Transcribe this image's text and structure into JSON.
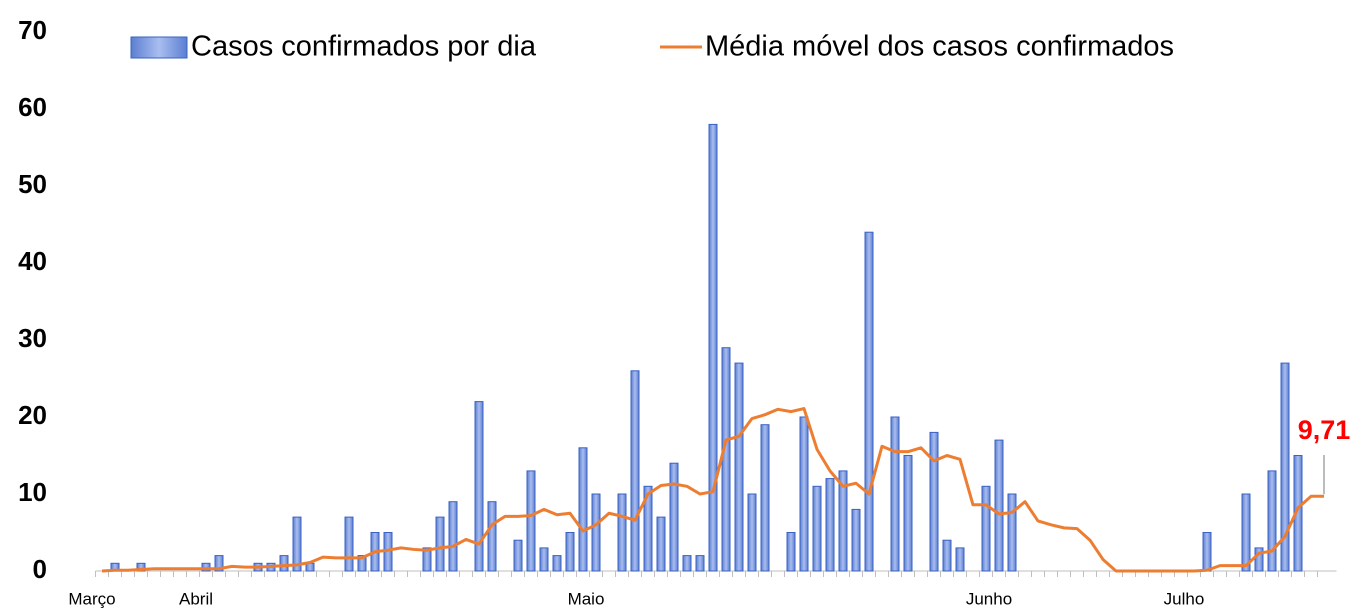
{
  "chart_data": {
    "type": "bar_line",
    "categories": [
      "Março",
      null,
      null,
      null,
      null,
      null,
      null,
      null,
      "Abril",
      null,
      null,
      null,
      null,
      null,
      null,
      null,
      null,
      null,
      null,
      null,
      null,
      null,
      null,
      null,
      null,
      null,
      null,
      null,
      null,
      null,
      null,
      null,
      null,
      null,
      null,
      null,
      null,
      null,
      "Maio",
      null,
      null,
      null,
      null,
      null,
      null,
      null,
      null,
      null,
      null,
      null,
      null,
      null,
      null,
      null,
      null,
      null,
      null,
      null,
      null,
      null,
      null,
      null,
      null,
      null,
      null,
      null,
      null,
      null,
      null,
      "Junho",
      null,
      null,
      null,
      null,
      null,
      null,
      null,
      null,
      null,
      null,
      null,
      null,
      null,
      null,
      "Julho",
      null,
      null,
      null,
      null,
      null,
      null,
      null,
      null,
      null,
      null
    ],
    "series": [
      {
        "name": "Casos confirmados por dia",
        "color": "#7291d8",
        "values": [
          0,
          1,
          0,
          1,
          0,
          0,
          0,
          0,
          1,
          2,
          0,
          0,
          1,
          1,
          2,
          7,
          1,
          0,
          0,
          7,
          2,
          5,
          5,
          0,
          0,
          3,
          7,
          9,
          0,
          22,
          9,
          0,
          4,
          13,
          3,
          2,
          5,
          16,
          10,
          0,
          10,
          26,
          11,
          7,
          14,
          2,
          2,
          58,
          29,
          27,
          10,
          19,
          0,
          5,
          20,
          11,
          12,
          13,
          8,
          44,
          0,
          20,
          15,
          0,
          18,
          4,
          3,
          0,
          11,
          17,
          10,
          0,
          0,
          0,
          0,
          0,
          0,
          0,
          0,
          0,
          0,
          0,
          0,
          0,
          0,
          5,
          0,
          0,
          10,
          3,
          13,
          27,
          15,
          0,
          0
        ]
      },
      {
        "name": "Média móvel dos casos confirmados",
        "color": "#ed7d31",
        "values": [
          0,
          0.1,
          0.1,
          0.2,
          0.3,
          0.3,
          0.3,
          0.3,
          0.3,
          0.3,
          0.6,
          0.5,
          0.5,
          0.6,
          0.7,
          0.8,
          1.1,
          1.8,
          1.7,
          1.7,
          1.7,
          2.5,
          2.7,
          3,
          2.8,
          2.7,
          3,
          3.2,
          4.1,
          3.5,
          6,
          7.1,
          7.1,
          7.2,
          8,
          7.3,
          7.5,
          5.2,
          6,
          7.5,
          7.1,
          6.6,
          10,
          11.1,
          11.3,
          11,
          10,
          10.3,
          17,
          17.5,
          19.8,
          20.3,
          21,
          20.7,
          21.1,
          15.8,
          13,
          11,
          11.4,
          10,
          16.2,
          15.5,
          15.5,
          16,
          14.3,
          15,
          14.5,
          8.6,
          8.6,
          7.4,
          7.6,
          9,
          6.5,
          6,
          5.6,
          5.5,
          4,
          1.5,
          0,
          0,
          0,
          0,
          0,
          0,
          0,
          0.1,
          0.7,
          0.7,
          0.7,
          2.3,
          2.6,
          4.5,
          8.2,
          9.7,
          9.71
        ],
        "value_labels": [
          null,
          null,
          null,
          null,
          null,
          null,
          null,
          null,
          null,
          null,
          null,
          null,
          null,
          null,
          null,
          null,
          null,
          null,
          null,
          null,
          null,
          null,
          null,
          null,
          null,
          null,
          null,
          null,
          null,
          null,
          null,
          null,
          null,
          null,
          null,
          null,
          null,
          null,
          null,
          null,
          null,
          null,
          null,
          null,
          null,
          null,
          null,
          null,
          null,
          null,
          null,
          null,
          null,
          null,
          null,
          null,
          null,
          null,
          null,
          null,
          null,
          null,
          null,
          null,
          null,
          null,
          null,
          null,
          null,
          null,
          null,
          null,
          null,
          null,
          null,
          null,
          null,
          null,
          null,
          null,
          null,
          null,
          null,
          null,
          null,
          null,
          null,
          null,
          null,
          null,
          null,
          null,
          null,
          null,
          "9,71"
        ]
      }
    ],
    "ylim": [
      0,
      70
    ],
    "yticks": [
      0,
      10,
      20,
      30,
      40,
      50,
      60,
      70
    ],
    "grid": false,
    "legend": "top"
  }
}
